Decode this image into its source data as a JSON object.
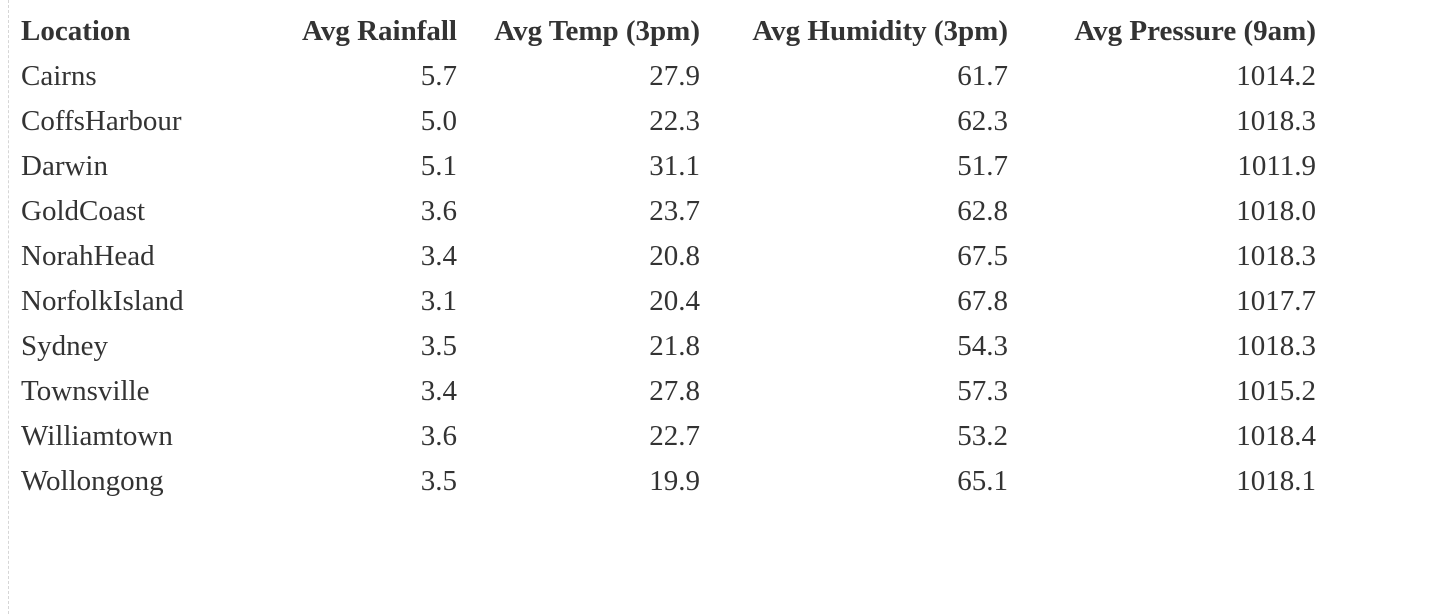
{
  "chart_data": {
    "type": "table",
    "columns": [
      "Location",
      "Avg Rainfall",
      "Avg Temp (3pm)",
      "Avg Humidity (3pm)",
      "Avg Pressure (9am)"
    ],
    "rows": [
      [
        "Cairns",
        "5.7",
        "27.9",
        "61.7",
        "1014.2"
      ],
      [
        "CoffsHarbour",
        "5.0",
        "22.3",
        "62.3",
        "1018.3"
      ],
      [
        "Darwin",
        "5.1",
        "31.1",
        "51.7",
        "1011.9"
      ],
      [
        "GoldCoast",
        "3.6",
        "23.7",
        "62.8",
        "1018.0"
      ],
      [
        "NorahHead",
        "3.4",
        "20.8",
        "67.5",
        "1018.3"
      ],
      [
        "NorfolkIsland",
        "3.1",
        "20.4",
        "67.8",
        "1017.7"
      ],
      [
        "Sydney",
        "3.5",
        "21.8",
        "54.3",
        "1018.3"
      ],
      [
        "Townsville",
        "3.4",
        "27.8",
        "57.3",
        "1015.2"
      ],
      [
        "Williamtown",
        "3.6",
        "22.7",
        "53.2",
        "1018.4"
      ],
      [
        "Wollongong",
        "3.5",
        "19.9",
        "65.1",
        "1018.1"
      ]
    ]
  }
}
